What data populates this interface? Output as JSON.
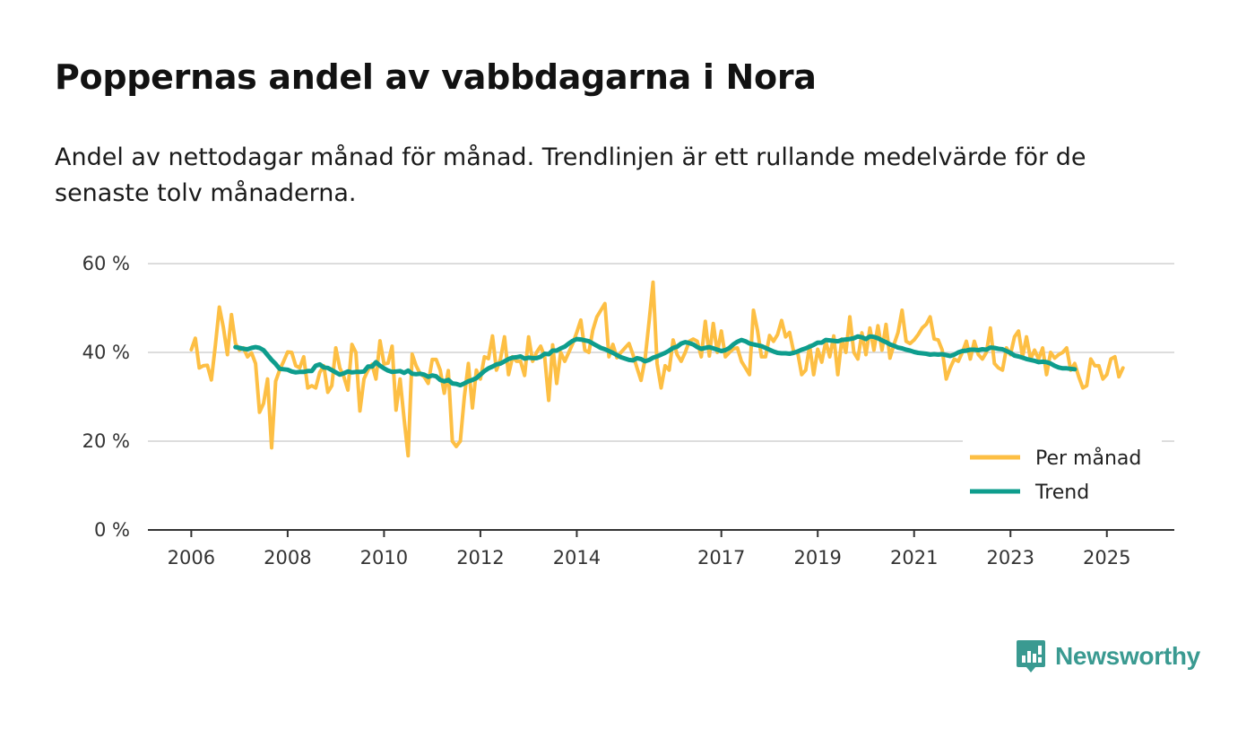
{
  "chart_data": {
    "type": "line",
    "title": "Poppernas andel av vabbdagarna i Nora",
    "subtitle": "Andel av nettodagar månad för månad. Trendlinjen är ett rullande medelvärde för de senaste tolv månaderna.",
    "xlabel": "",
    "ylabel": "",
    "x_start": 2006.0,
    "x_step": 0.0833333,
    "xlim": [
      2005.1,
      2026.4
    ],
    "ylim": [
      0,
      60
    ],
    "x_ticks": [
      2006,
      2008,
      2010,
      2012,
      2014,
      2017,
      2019,
      2021,
      2023,
      2025
    ],
    "x_tick_labels": [
      "2006",
      "2008",
      "2010",
      "2012",
      "2014",
      "2017",
      "2019",
      "2021",
      "2023",
      "2025"
    ],
    "y_ticks": [
      0,
      20,
      40,
      60
    ],
    "y_tick_labels": [
      "0 %",
      "20 %",
      "40 %",
      "60 %"
    ],
    "grid": true,
    "legend_position": "bottom-right",
    "series": [
      {
        "name": "Per månad",
        "color": "#fdbf44",
        "values": [
          40.6,
          43.2,
          36.5,
          37.0,
          37.1,
          33.8,
          41.7,
          50.2,
          45.6,
          39.5,
          48.5,
          42.0,
          40.5,
          41.0,
          39.0,
          39.9,
          37.5,
          26.5,
          28.5,
          34.0,
          18.5,
          33.5,
          36.0,
          38.0,
          40.1,
          40.0,
          37.0,
          36.5,
          39.0,
          32.0,
          32.5,
          32.0,
          35.5,
          37.0,
          31.0,
          32.5,
          41.0,
          36.5,
          34.5,
          31.5,
          41.8,
          40.0,
          26.8,
          34.0,
          36.0,
          37.3,
          34.0,
          42.6,
          37.4,
          37.6,
          41.4,
          27.0,
          34.0,
          25.0,
          16.7,
          39.6,
          37.0,
          35.2,
          34.5,
          33.0,
          38.4,
          38.4,
          36.0,
          30.8,
          35.9,
          20.0,
          18.8,
          20.0,
          30.0,
          37.5,
          27.5,
          36.0,
          34.0,
          39.0,
          38.6,
          43.7,
          36.0,
          38.5,
          43.5,
          35.0,
          39.0,
          38.0,
          38.0,
          34.8,
          43.5,
          38.0,
          40.0,
          41.4,
          39.0,
          29.2,
          41.7,
          33.0,
          40.0,
          38.0,
          40.0,
          42.0,
          44.5,
          47.3,
          40.5,
          40.0,
          45.0,
          48.0,
          49.5,
          51.0,
          39.0,
          41.8,
          38.8,
          40.0,
          41.0,
          42.0,
          39.5,
          36.5,
          33.7,
          38.5,
          47.0,
          55.8,
          37.5,
          32.0,
          37.0,
          36.0,
          42.8,
          39.5,
          38.0,
          40.0,
          42.5,
          43.0,
          42.5,
          39.0,
          47.0,
          39.2,
          46.5,
          40.0,
          44.8,
          39.0,
          40.0,
          40.8,
          41.0,
          38.0,
          36.5,
          35.0,
          49.5,
          45.0,
          39.0,
          39.0,
          43.8,
          42.5,
          44.0,
          47.2,
          43.5,
          44.5,
          40.2,
          40.0,
          35.0,
          36.0,
          41.5,
          35.0,
          40.7,
          37.8,
          42.5,
          39.0,
          43.7,
          35.0,
          43.0,
          40.0,
          48.0,
          40.0,
          38.5,
          44.4,
          39.5,
          45.5,
          40.5,
          46.0,
          40.5,
          46.3,
          38.7,
          41.8,
          44.5,
          49.5,
          42.5,
          42.0,
          42.8,
          44.0,
          45.5,
          46.3,
          48.0,
          43.0,
          42.8,
          40.5,
          34.0,
          36.5,
          38.5,
          38.0,
          40.0,
          42.5,
          38.5,
          42.5,
          39.5,
          38.5,
          40.0,
          45.5,
          37.5,
          36.5,
          36.0,
          41.0,
          39.5,
          43.5,
          44.8,
          39.0,
          43.5,
          38.5,
          40.5,
          38.5,
          41.0,
          35.0,
          40.0,
          38.7,
          39.5,
          40.0,
          41.0,
          36.0,
          37.5,
          34.5,
          32.0,
          32.5,
          38.5,
          37.0,
          37.0,
          34.0,
          35.0,
          38.5,
          39.0,
          34.5,
          36.5
        ]
      },
      {
        "name": "Trend",
        "color": "#0e9d8d",
        "start_index": 11,
        "values": [
          41.2,
          41.0,
          40.8,
          40.7,
          41.0,
          41.2,
          41.0,
          40.5,
          39.4,
          38.3,
          37.4,
          36.3,
          36.2,
          36.1,
          35.7,
          35.5,
          35.6,
          35.6,
          35.8,
          35.8,
          37.0,
          37.3,
          36.6,
          36.5,
          36.0,
          35.5,
          35.0,
          35.3,
          35.7,
          35.5,
          35.6,
          35.6,
          35.7,
          36.8,
          36.8,
          37.8,
          37.0,
          36.4,
          35.9,
          35.6,
          35.7,
          35.8,
          35.4,
          35.9,
          35.2,
          35.1,
          35.2,
          35.0,
          34.5,
          34.8,
          34.6,
          33.8,
          33.5,
          33.8,
          33.0,
          32.9,
          32.6,
          33.0,
          33.5,
          33.8,
          34.2,
          35.0,
          35.8,
          36.4,
          36.8,
          37.3,
          37.5,
          38.0,
          38.5,
          38.8,
          38.9,
          39.1,
          38.6,
          38.8,
          38.7,
          38.7,
          39.0,
          39.7,
          39.6,
          40.4,
          40.4,
          40.9,
          41.3,
          42.0,
          42.6,
          43.0,
          42.9,
          42.7,
          42.5,
          42.0,
          41.5,
          41.0,
          40.7,
          40.3,
          39.9,
          39.4,
          38.9,
          38.6,
          38.3,
          38.2,
          38.7,
          38.5,
          38.0,
          38.3,
          38.8,
          39.1,
          39.5,
          39.9,
          40.4,
          41.0,
          41.3,
          42.0,
          42.3,
          42.1,
          41.8,
          41.2,
          40.8,
          41.0,
          41.2,
          40.9,
          40.6,
          40.3,
          40.5,
          41.0,
          41.8,
          42.4,
          42.8,
          42.5,
          42.0,
          41.8,
          41.6,
          41.4,
          41.0,
          40.6,
          40.2,
          39.9,
          39.8,
          39.8,
          39.7,
          39.9,
          40.2,
          40.6,
          40.9,
          41.3,
          41.7,
          42.2,
          42.2,
          42.8,
          42.7,
          42.6,
          42.5,
          42.8,
          42.9,
          43.0,
          43.2,
          43.6,
          43.4,
          43.0,
          43.6,
          43.5,
          43.2,
          42.7,
          42.3,
          41.8,
          41.5,
          41.1,
          40.9,
          40.6,
          40.4,
          40.1,
          39.9,
          39.8,
          39.7,
          39.5,
          39.6,
          39.5,
          39.6,
          39.4,
          39.2,
          39.5,
          40.0,
          40.3,
          40.4,
          40.6,
          40.6,
          40.5,
          40.7,
          40.6,
          41.1,
          41.0,
          40.8,
          40.7,
          40.3,
          39.9,
          39.3,
          39.1,
          38.8,
          38.5,
          38.3,
          38.1,
          37.8,
          37.9,
          37.8,
          37.5,
          37.0,
          36.6,
          36.4,
          36.4,
          36.3,
          36.2
        ]
      }
    ]
  },
  "brand": {
    "name": "Newsworthy"
  }
}
